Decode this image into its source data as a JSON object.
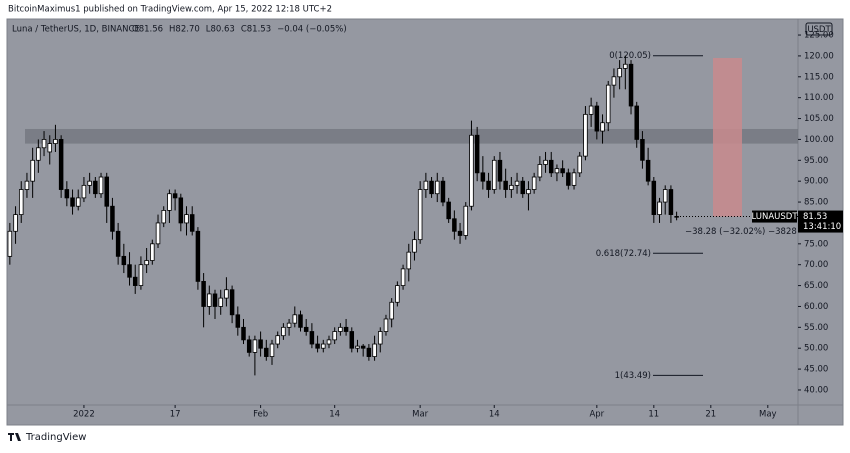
{
  "header": {
    "publisher": "BitcoinMaximus1 published on TradingView.com, Apr 15, 2022 12:18 UTC+2"
  },
  "footer": {
    "brand": "TradingView"
  },
  "chart_data": {
    "type": "candlestick",
    "title": "Luna / TetherUS, 1D, BINANCE",
    "ohlc_legend": [
      "O81.56",
      "H82.70",
      "L80.63",
      "C81.53",
      "−0.04 (−0.05%)"
    ],
    "currency": "USDT",
    "symbol": "LUNAUSDT",
    "last_price": 81.53,
    "countdown": "13:41:10",
    "colors": {
      "up": "#ffffff",
      "down": "#000000",
      "background": "#9598a1",
      "zone": "#6f727b",
      "projection": "#c98a8d"
    },
    "open": [
      72,
      78,
      82,
      88,
      90,
      95,
      98,
      97,
      99,
      100,
      88,
      86,
      84,
      86,
      89,
      90,
      87,
      91,
      84,
      78,
      72,
      70,
      67,
      65,
      70,
      71,
      75,
      80,
      83,
      87,
      86,
      80,
      82,
      78,
      66,
      60,
      63,
      60,
      62,
      64,
      58,
      55,
      52,
      49,
      52,
      50,
      48,
      51,
      53,
      55,
      56,
      58,
      55,
      54,
      51,
      50,
      51,
      52,
      54,
      55,
      54,
      50,
      50.5,
      50,
      48,
      51,
      54,
      57,
      61,
      65,
      69,
      73,
      76,
      88,
      90,
      87,
      90,
      85,
      81,
      78,
      77,
      84,
      101,
      92,
      90,
      88,
      95,
      90,
      88,
      89,
      90,
      87,
      88,
      91,
      94,
      95,
      92,
      93,
      92,
      89,
      92,
      96,
      106,
      108,
      102,
      104,
      113,
      115,
      117,
      118,
      108,
      100,
      95,
      90,
      82,
      85,
      88,
      81.56
    ],
    "high": [
      80,
      84,
      90,
      92,
      98,
      100,
      102,
      101,
      103.5,
      101,
      90,
      88,
      88,
      91,
      92,
      91,
      92,
      92,
      86,
      80,
      75,
      73,
      70,
      72,
      74,
      76,
      82,
      84,
      88,
      88,
      87,
      84,
      84,
      79,
      68,
      65,
      64,
      64,
      67,
      65,
      60,
      57,
      53,
      53,
      54,
      52,
      52,
      54,
      56,
      57,
      60,
      59,
      57,
      56,
      53,
      52,
      53,
      55,
      56,
      57,
      55,
      52,
      51,
      51,
      53,
      55,
      58,
      62,
      66,
      70,
      75,
      78,
      90,
      92,
      91,
      92,
      91,
      86,
      83,
      80,
      85,
      104.5,
      103,
      96,
      92,
      96,
      97,
      93,
      91,
      92,
      91,
      90,
      92,
      96,
      97,
      97,
      94,
      95,
      93,
      93,
      97,
      108,
      110,
      109,
      106,
      114,
      117,
      119,
      120.05,
      119,
      109,
      102,
      98,
      91,
      86,
      89,
      89,
      82.7
    ],
    "low": [
      70,
      75,
      80,
      86,
      86,
      92,
      96,
      94,
      97,
      86,
      84,
      82,
      83,
      85,
      87,
      86,
      86,
      80,
      76,
      70,
      68,
      65,
      63,
      64,
      68,
      70,
      74,
      79,
      80,
      83,
      78,
      77,
      77,
      64,
      55,
      58,
      57,
      58,
      60,
      56,
      53,
      51,
      48,
      43.49,
      48,
      47,
      46,
      50,
      52,
      53,
      55,
      54,
      53,
      50,
      49,
      49,
      50,
      51,
      53,
      53,
      49,
      49,
      48,
      47,
      47,
      49,
      53,
      55,
      60,
      64,
      66,
      71,
      75,
      86,
      86,
      85,
      84,
      80,
      76,
      75,
      76,
      83,
      90,
      88,
      86,
      87,
      88,
      86,
      86,
      87,
      86,
      83,
      87,
      90,
      92,
      91,
      90,
      91,
      88,
      88,
      91,
      95,
      103,
      100,
      99,
      102,
      110,
      112,
      112,
      106,
      98,
      93,
      89,
      80,
      80,
      82,
      80,
      80.63
    ],
    "close": [
      78,
      82,
      88,
      90,
      95,
      98,
      100,
      99,
      100,
      88,
      86,
      84,
      86,
      89,
      90,
      87,
      91,
      84,
      78,
      72,
      70,
      67,
      65,
      70,
      71,
      75,
      80,
      83,
      87,
      86,
      80,
      82,
      78,
      66,
      60,
      63,
      60,
      62,
      64,
      58,
      55,
      52,
      49,
      52,
      50,
      48,
      51,
      53,
      55,
      56,
      58,
      55,
      54,
      51,
      50,
      51,
      52,
      54,
      55,
      54,
      50,
      50.5,
      50,
      48,
      51,
      54,
      57,
      61,
      65,
      69,
      73,
      76,
      88,
      90,
      87,
      90,
      85,
      81,
      78,
      77,
      84,
      101,
      92,
      90,
      88,
      95,
      90,
      88,
      89,
      90,
      87,
      88,
      91,
      94,
      95,
      92,
      93,
      92,
      89,
      92,
      96,
      106,
      108,
      102,
      104,
      113,
      115,
      117,
      118,
      108,
      100,
      95,
      90,
      82,
      85,
      88,
      82,
      81.53
    ],
    "xlim": [
      -0.5,
      138.3
    ],
    "xticks": [
      {
        "value": 13,
        "label": "2022"
      },
      {
        "value": 29,
        "label": "17"
      },
      {
        "value": 44,
        "label": "Feb"
      },
      {
        "value": 57,
        "label": "14"
      },
      {
        "value": 72,
        "label": "Mar"
      },
      {
        "value": 85,
        "label": "14"
      },
      {
        "value": 103,
        "label": "Apr"
      },
      {
        "value": 113,
        "label": "11"
      },
      {
        "value": 123,
        "label": "21"
      },
      {
        "value": 133,
        "label": "May"
      }
    ],
    "ylim": [
      36.4,
      128.6
    ],
    "yticks": [
      {
        "value": 40,
        "label": "40.00"
      },
      {
        "value": 45,
        "label": "45.00"
      },
      {
        "value": 50,
        "label": "50.00"
      },
      {
        "value": 55,
        "label": "55.00"
      },
      {
        "value": 60,
        "label": "60.00"
      },
      {
        "value": 65,
        "label": "65.00"
      },
      {
        "value": 70,
        "label": "70.00"
      },
      {
        "value": 75,
        "label": "75.00"
      },
      {
        "value": 80,
        "label": "80.00"
      },
      {
        "value": 85,
        "label": "85.00"
      },
      {
        "value": 90,
        "label": "90.00"
      },
      {
        "value": 95,
        "label": "95.00"
      },
      {
        "value": 100,
        "label": "100.00"
      },
      {
        "value": 105,
        "label": "105.00"
      },
      {
        "value": 110,
        "label": "110.00"
      },
      {
        "value": 115,
        "label": "115.00"
      },
      {
        "value": 120,
        "label": "120.00"
      },
      {
        "value": 125,
        "label": "125.00"
      }
    ],
    "fib_levels": [
      {
        "value": 120.05,
        "label": "0(120.05)"
      },
      {
        "value": 72.74,
        "label": "0.618(72.74)"
      },
      {
        "value": 43.49,
        "label": "1(43.49)"
      }
    ],
    "zone": [
      99,
      102.5
    ],
    "projection": {
      "top": 119.5,
      "bottom": 81.5,
      "label": "−38.28 (−32.02%) −3828"
    }
  }
}
